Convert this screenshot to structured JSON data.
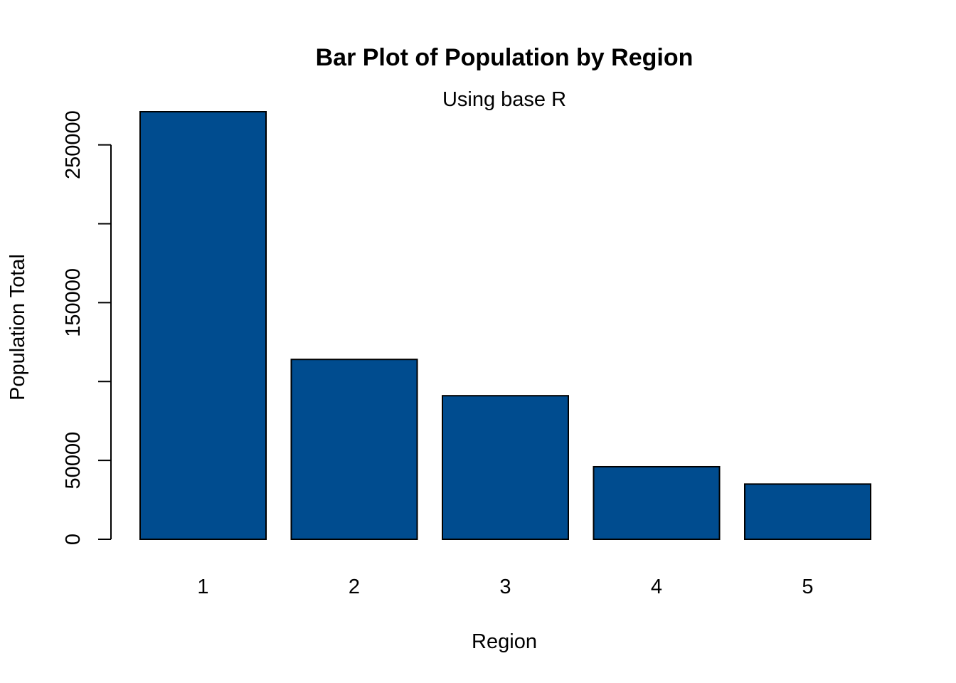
{
  "chart_data": {
    "type": "bar",
    "title": "Bar Plot of Population by Region",
    "subtitle": "Using base R",
    "xlabel": "Region",
    "ylabel": "Population Total",
    "categories": [
      "1",
      "2",
      "3",
      "4",
      "5"
    ],
    "values": [
      271000,
      114000,
      91000,
      46000,
      35000
    ],
    "ylim": [
      0,
      271000
    ],
    "yticks": [
      0,
      50000,
      100000,
      150000,
      200000,
      250000
    ],
    "ytick_labels": [
      "0",
      "50000",
      "",
      "150000",
      "",
      "250000"
    ],
    "bar_color": "#004C8F",
    "grid": false,
    "legend": "none"
  }
}
